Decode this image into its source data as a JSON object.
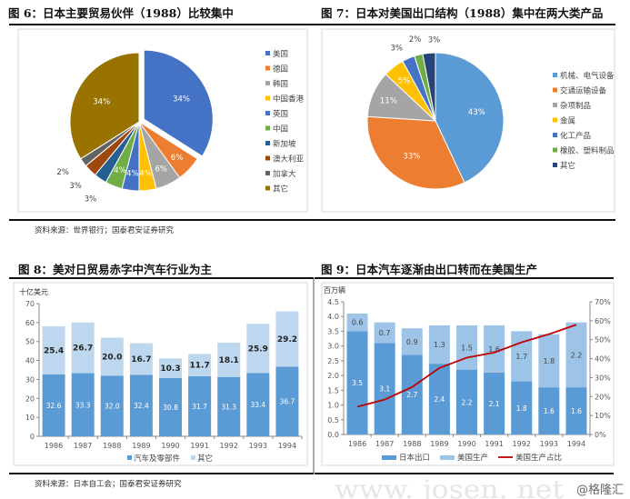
{
  "figures": {
    "fig6": {
      "title": "图 6：日本主要贸易伙伴（1988）比较集中",
      "source": "资料来源：世界银行；国泰君安证券研究"
    },
    "fig7": {
      "title": "图 7：日本对美国出口结构（1988）集中在两大类产品"
    },
    "fig8": {
      "title": "图 8：美对日贸易赤字中汽车行业为主",
      "source": "资料来源：日本自工会；国泰君安证券研究"
    },
    "fig9": {
      "title": "图 9：日本汽车逐渐由出口转而在美国生产"
    }
  },
  "watermark": {
    "site": "www. josen. net",
    "handle": "@格隆汇"
  },
  "chart_data": [
    {
      "type": "pie",
      "title": "图 6：日本主要贸易伙伴（1988）比较集中",
      "labels": [
        "美国",
        "德国",
        "韩国",
        "中国香港",
        "英国",
        "中国",
        "新加坡",
        "澳大利亚",
        "加拿大",
        "其它"
      ],
      "values": [
        34,
        6,
        6,
        4,
        4,
        4,
        3,
        3,
        2,
        34
      ],
      "value_labels": [
        "34%",
        "6%",
        "6%",
        "4%",
        "4%",
        "4%",
        "3%",
        "3%",
        "2%",
        "34%"
      ],
      "colors": [
        "#4472C4",
        "#ED7D31",
        "#A5A5A5",
        "#FFC000",
        "#4472C4",
        "#70AD47",
        "#255E91",
        "#9E480E",
        "#636363",
        "#997300"
      ],
      "exploded": "美国",
      "legend": "right"
    },
    {
      "type": "pie",
      "title": "图 7：日本对美国出口结构（1988）集中在两大类产品",
      "labels": [
        "机械、电气设备",
        "交通运输设备",
        "杂项制品",
        "金属",
        "化工产品",
        "橡胶、塑料制品",
        "其它"
      ],
      "values": [
        43,
        33,
        11,
        5,
        3,
        2,
        3
      ],
      "value_labels": [
        "43%",
        "33%",
        "11%",
        "5%",
        "3%",
        "2%",
        "3%"
      ],
      "colors": [
        "#5B9BD5",
        "#ED7D31",
        "#A5A5A5",
        "#FFC000",
        "#4472C4",
        "#70AD47",
        "#264478"
      ],
      "legend": "right"
    },
    {
      "type": "bar",
      "stacked": true,
      "title": "图 8：美对日贸易赤字中汽车行业为主",
      "ylabel": "十亿美元",
      "categories": [
        "1986",
        "1987",
        "1988",
        "1989",
        "1990",
        "1991",
        "1992",
        "1993",
        "1994"
      ],
      "series": [
        {
          "name": "汽车及零部件",
          "values": [
            32.6,
            33.3,
            32.0,
            32.4,
            30.8,
            31.7,
            31.3,
            33.4,
            36.7
          ],
          "color": "#5B9BD5"
        },
        {
          "name": "其它",
          "values": [
            25.4,
            26.7,
            20.0,
            16.7,
            10.3,
            11.7,
            18.1,
            25.9,
            29.2
          ],
          "color": "#BDD7EE"
        }
      ],
      "ylim": [
        0,
        70
      ],
      "yticks": [
        "0",
        "10",
        "20",
        "30",
        "40",
        "50",
        "60",
        "70"
      ],
      "legend": "bottom"
    },
    {
      "type": "bar",
      "stacked": true,
      "title": "图 9：日本汽车逐渐由出口转而在美国生产",
      "ylabel": "百万辆",
      "categories": [
        "1986",
        "1987",
        "1988",
        "1989",
        "1990",
        "1991",
        "1992",
        "1993",
        "1994"
      ],
      "series": [
        {
          "name": "日本出口",
          "values": [
            3.5,
            3.1,
            2.7,
            2.4,
            2.2,
            2.1,
            1.8,
            1.6,
            1.6
          ],
          "color": "#5B9BD5"
        },
        {
          "name": "美国生产",
          "values": [
            0.6,
            0.7,
            0.9,
            1.3,
            1.5,
            1.6,
            1.7,
            1.8,
            2.2
          ],
          "color": "#9DC3E6"
        }
      ],
      "line_series": {
        "name": "美国生产占比",
        "axis": "right",
        "values": [
          14.6,
          18.4,
          25.0,
          35.1,
          40.5,
          43.2,
          48.6,
          52.9,
          57.9
        ],
        "color": "#C00000"
      },
      "ylim": [
        0,
        4.5
      ],
      "yticks": [
        "0.0",
        "0.5",
        "1.0",
        "1.5",
        "2.0",
        "2.5",
        "3.0",
        "3.5",
        "4.0",
        "4.5"
      ],
      "y2lim": [
        0,
        70
      ],
      "y2ticks": [
        "0%",
        "10%",
        "20%",
        "30%",
        "40%",
        "50%",
        "60%",
        "70%"
      ],
      "legend": "bottom"
    }
  ]
}
